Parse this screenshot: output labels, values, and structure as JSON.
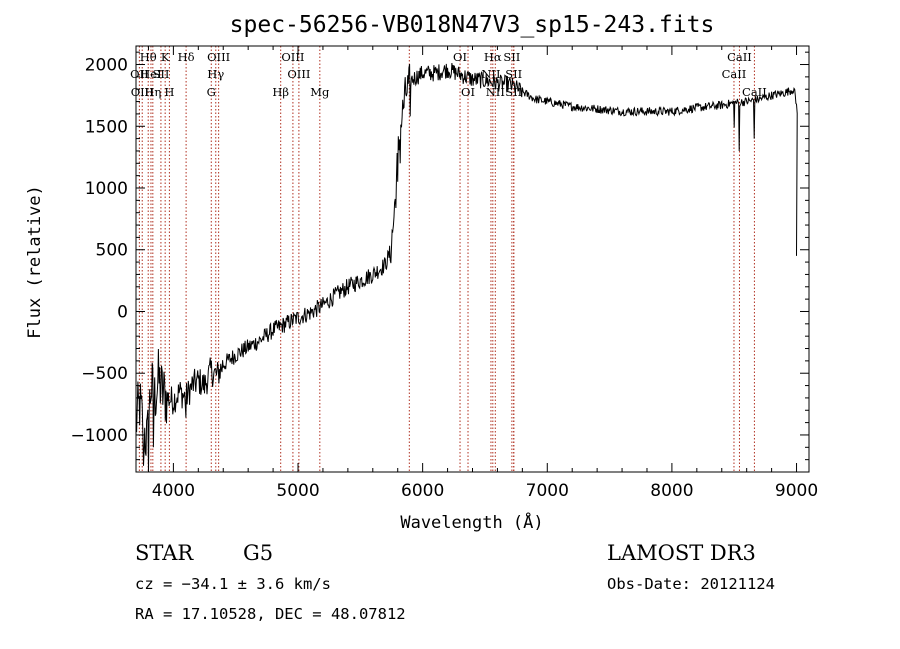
{
  "chart_data": {
    "type": "line",
    "title": "spec-56256-VB018N47V3_sp15-243.fits",
    "xlabel": "Wavelength (Å)",
    "ylabel": "Flux (relative)",
    "xlim": [
      3700,
      9100
    ],
    "ylim": [
      -1300,
      2150
    ],
    "xticks": [
      4000,
      5000,
      6000,
      7000,
      8000,
      9000
    ],
    "yticks": [
      -1000,
      -500,
      0,
      500,
      1000,
      1500,
      2000
    ],
    "grid": false,
    "legend": "none",
    "line_color": "#000000",
    "marker_color": "#b03020",
    "spectrum_anchors": [
      [
        3700,
        -900
      ],
      [
        3730,
        -750
      ],
      [
        3760,
        -950
      ],
      [
        3790,
        -1050
      ],
      [
        3820,
        -600
      ],
      [
        3850,
        -700
      ],
      [
        3880,
        -550
      ],
      [
        3910,
        -650
      ],
      [
        3950,
        -700
      ],
      [
        4000,
        -720
      ],
      [
        4050,
        -650
      ],
      [
        4100,
        -700
      ],
      [
        4150,
        -600
      ],
      [
        4200,
        -560
      ],
      [
        4250,
        -600
      ],
      [
        4300,
        -480
      ],
      [
        4350,
        -520
      ],
      [
        4400,
        -430
      ],
      [
        4500,
        -350
      ],
      [
        4600,
        -290
      ],
      [
        4700,
        -230
      ],
      [
        4800,
        -150
      ],
      [
        4900,
        -100
      ],
      [
        5000,
        -50
      ],
      [
        5100,
        -10
      ],
      [
        5200,
        50
      ],
      [
        5300,
        130
      ],
      [
        5400,
        200
      ],
      [
        5500,
        250
      ],
      [
        5600,
        300
      ],
      [
        5700,
        380
      ],
      [
        5740,
        480
      ],
      [
        5760,
        650
      ],
      [
        5780,
        900
      ],
      [
        5800,
        1250
      ],
      [
        5830,
        1550
      ],
      [
        5860,
        1750
      ],
      [
        5900,
        1870
      ],
      [
        5950,
        1900
      ],
      [
        6000,
        1930
      ],
      [
        6100,
        1930
      ],
      [
        6200,
        1960
      ],
      [
        6300,
        1920
      ],
      [
        6400,
        1880
      ],
      [
        6500,
        1870
      ],
      [
        6600,
        1850
      ],
      [
        6700,
        1840
      ],
      [
        6800,
        1780
      ],
      [
        6900,
        1720
      ],
      [
        7000,
        1700
      ],
      [
        7200,
        1660
      ],
      [
        7400,
        1640
      ],
      [
        7600,
        1620
      ],
      [
        7800,
        1620
      ],
      [
        8000,
        1620
      ],
      [
        8200,
        1650
      ],
      [
        8400,
        1670
      ],
      [
        8500,
        1690
      ],
      [
        8600,
        1700
      ],
      [
        8700,
        1720
      ],
      [
        8800,
        1750
      ],
      [
        8900,
        1770
      ],
      [
        8980,
        1800
      ],
      [
        9010,
        1600
      ]
    ],
    "dips": [
      [
        3760,
        -1250
      ],
      [
        3800,
        -1300
      ],
      [
        3840,
        -1100
      ],
      [
        4100,
        -860
      ],
      [
        5800,
        1050
      ],
      [
        5820,
        1200
      ],
      [
        5900,
        1580
      ],
      [
        8500,
        1490
      ],
      [
        8540,
        1300
      ],
      [
        8660,
        1400
      ]
    ],
    "spikes": [
      [
        9000,
        450
      ],
      [
        9005,
        1550
      ]
    ],
    "line_markers": [
      {
        "label": "OII",
        "wavelength": 3727,
        "row": 2
      },
      {
        "label": "Hθ",
        "wavelength": 3798,
        "row": 1
      },
      {
        "label": "OIII",
        "wavelength": 3750,
        "row": 3
      },
      {
        "label": "HeI",
        "wavelength": 3820,
        "row": 2
      },
      {
        "label": "Hη",
        "wavelength": 3835,
        "row": 3
      },
      {
        "label": "K",
        "wavelength": 3934,
        "row": 1
      },
      {
        "label": "SII",
        "wavelength": 3900,
        "row": 2
      },
      {
        "label": "H",
        "wavelength": 3968,
        "row": 3
      },
      {
        "label": "Hδ",
        "wavelength": 4102,
        "row": 1
      },
      {
        "label": "OIII",
        "wavelength": 4363,
        "row": 1
      },
      {
        "label": "Hγ",
        "wavelength": 4340,
        "row": 2
      },
      {
        "label": "G",
        "wavelength": 4304,
        "row": 3
      },
      {
        "label": "OIII",
        "wavelength": 4959,
        "row": 1
      },
      {
        "label": "OIII",
        "wavelength": 5007,
        "row": 2
      },
      {
        "label": "Hβ",
        "wavelength": 4861,
        "row": 3
      },
      {
        "label": "Mg",
        "wavelength": 5175,
        "row": 3
      },
      {
        "label": "",
        "wavelength": 5893,
        "row": 0
      },
      {
        "label": "OI",
        "wavelength": 6300,
        "row": 1
      },
      {
        "label": "OI",
        "wavelength": 6364,
        "row": 3
      },
      {
        "label": "Hα",
        "wavelength": 6563,
        "row": 1
      },
      {
        "label": "NII",
        "wavelength": 6548,
        "row": 2
      },
      {
        "label": "NII",
        "wavelength": 6583,
        "row": 3
      },
      {
        "label": "SII",
        "wavelength": 6716,
        "row": 1
      },
      {
        "label": "SII",
        "wavelength": 6731,
        "row": 2
      },
      {
        "label": "SII",
        "wavelength": 6731,
        "row": 3
      },
      {
        "label": "CaII",
        "wavelength": 8542,
        "row": 1
      },
      {
        "label": "CaII",
        "wavelength": 8498,
        "row": 2
      },
      {
        "label": "CaII",
        "wavelength": 8662,
        "row": 3
      }
    ]
  },
  "info": {
    "object_class": "STAR",
    "subclass": "G5",
    "survey": "LAMOST DR3",
    "redshift": "cz = −34.1 ± 3.6 km/s",
    "obs_date": "Obs-Date: 20121124",
    "coords": "RA =  17.10528, DEC =  48.07812"
  }
}
